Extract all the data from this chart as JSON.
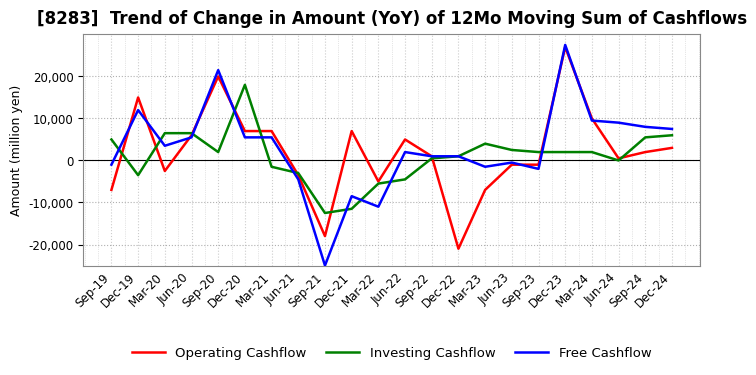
{
  "title": "[8283]  Trend of Change in Amount (YoY) of 12Mo Moving Sum of Cashflows",
  "ylabel": "Amount (million yen)",
  "xlabels": [
    "Sep-19",
    "Dec-19",
    "Mar-20",
    "Jun-20",
    "Sep-20",
    "Dec-20",
    "Mar-21",
    "Jun-21",
    "Sep-21",
    "Dec-21",
    "Mar-22",
    "Jun-22",
    "Sep-22",
    "Dec-22",
    "Mar-23",
    "Jun-23",
    "Sep-23",
    "Dec-23",
    "Mar-24",
    "Jun-24",
    "Sep-24",
    "Dec-24"
  ],
  "operating": [
    -7000,
    15000,
    -2500,
    6000,
    20000,
    7000,
    7000,
    -3500,
    -18000,
    7000,
    -5000,
    5000,
    1000,
    -21000,
    -7000,
    -1000,
    -1000,
    27000,
    10000,
    500,
    2000,
    3000
  ],
  "investing": [
    5000,
    -3500,
    6500,
    6500,
    2000,
    18000,
    -1500,
    -3000,
    -12500,
    -11500,
    -5500,
    -4500,
    500,
    1000,
    4000,
    2500,
    2000,
    2000,
    2000,
    0,
    5500,
    6000
  ],
  "free": [
    -1000,
    12000,
    3500,
    5500,
    21500,
    5500,
    5500,
    -4500,
    -25000,
    -8500,
    -11000,
    2000,
    1000,
    1000,
    -1500,
    -500,
    -2000,
    27500,
    9500,
    9000,
    8000,
    7500
  ],
  "operating_color": "#ff0000",
  "investing_color": "#008000",
  "free_color": "#0000ff",
  "ylim": [
    -25000,
    30000
  ],
  "yticks": [
    -20000,
    -10000,
    0,
    10000,
    20000
  ],
  "background_color": "#ffffff",
  "grid_major_color": "#b0b0b0",
  "grid_minor_color": "#cccccc",
  "title_fontsize": 12,
  "axis_fontsize": 8.5,
  "legend_fontsize": 9.5
}
